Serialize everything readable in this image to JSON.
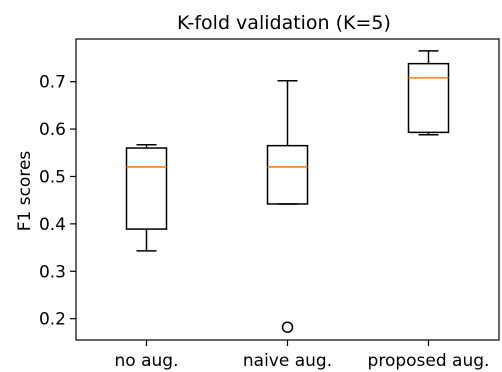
{
  "chart_data": {
    "type": "boxplot",
    "title": "K-fold validation (K=5)",
    "xlabel": "",
    "ylabel": "F1 scores",
    "ylim": [
      0.155,
      0.79
    ],
    "yticks": [
      "0.2",
      "0.3",
      "0.4",
      "0.5",
      "0.6",
      "0.7"
    ],
    "categories": [
      "no aug.",
      "naive aug.",
      "proposed aug."
    ],
    "boxes": [
      {
        "category": "no aug.",
        "whisker_low": 0.343,
        "q1": 0.389,
        "median": 0.52,
        "q3": 0.56,
        "whisker_high": 0.567,
        "outliers": []
      },
      {
        "category": "naive aug.",
        "whisker_low": 0.442,
        "q1": 0.442,
        "median": 0.52,
        "q3": 0.565,
        "whisker_high": 0.702,
        "outliers": [
          0.182
        ]
      },
      {
        "category": "proposed aug.",
        "whisker_low": 0.588,
        "q1": 0.593,
        "median": 0.708,
        "q3": 0.738,
        "whisker_high": 0.765,
        "outliers": []
      }
    ],
    "grid": false,
    "colors": {
      "box": "#000000",
      "median": "#ff7f0e",
      "background": "#ffffff"
    }
  }
}
